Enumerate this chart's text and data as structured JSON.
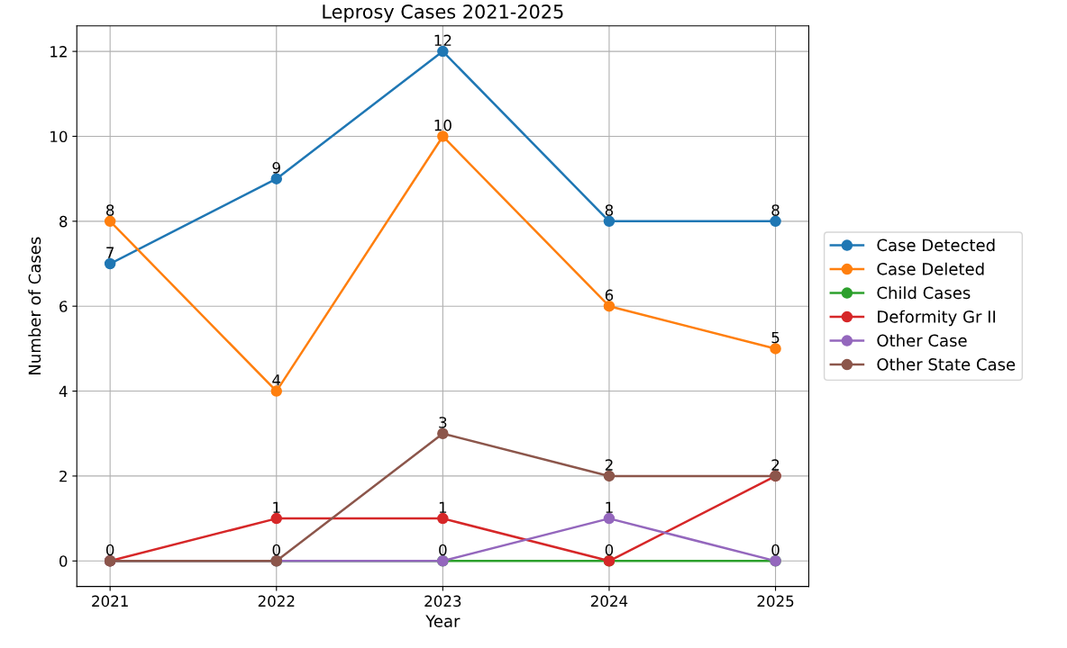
{
  "chart_data": {
    "type": "line",
    "title": "Leprosy Cases 2021-2025",
    "xlabel": "Year",
    "ylabel": "Number of Cases",
    "x": [
      2021,
      2022,
      2023,
      2024,
      2025
    ],
    "series": [
      {
        "name": "Case Detected",
        "color": "#1f77b4",
        "values": [
          7,
          9,
          12,
          8,
          8
        ],
        "value_labels": [
          "7",
          "9",
          "12",
          "8",
          "8"
        ]
      },
      {
        "name": "Case Deleted",
        "color": "#ff7f0e",
        "values": [
          8,
          4,
          10,
          6,
          5
        ],
        "value_labels": [
          "8",
          "4",
          "10",
          "6",
          "5"
        ]
      },
      {
        "name": "Child Cases",
        "color": "#2ca02c",
        "values": [
          0,
          0,
          0,
          0,
          0
        ],
        "value_labels": [
          "0",
          "0",
          "0",
          "0",
          "0"
        ]
      },
      {
        "name": "Deformity Gr II",
        "color": "#d62728",
        "values": [
          0,
          1,
          1,
          0,
          2
        ],
        "value_labels": [
          null,
          "1",
          "1",
          null,
          "2"
        ]
      },
      {
        "name": "Other Case",
        "color": "#9467bd",
        "values": [
          0,
          0,
          0,
          1,
          0
        ],
        "value_labels": [
          null,
          null,
          null,
          "1",
          null
        ]
      },
      {
        "name": "Other State Case",
        "color": "#8c564b",
        "values": [
          0,
          0,
          3,
          2,
          2
        ],
        "value_labels": [
          null,
          null,
          "3",
          "2",
          null
        ]
      }
    ],
    "xlim": [
      2020.8,
      2025.2
    ],
    "xticks": [
      2021,
      2022,
      2023,
      2024,
      2025
    ],
    "ylim": [
      -0.6,
      12.6
    ],
    "yticks": [
      0,
      2,
      4,
      6,
      8,
      10,
      12
    ],
    "grid": true,
    "legend": "right",
    "marker": "circle",
    "line_style": "solid"
  }
}
